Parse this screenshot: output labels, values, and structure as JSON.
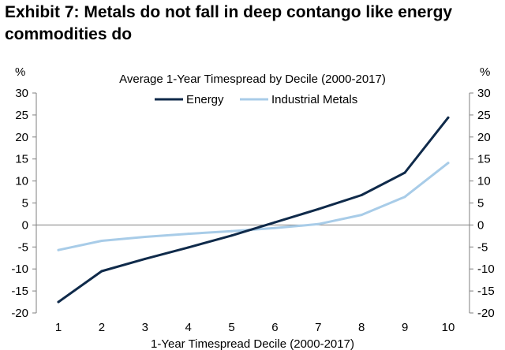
{
  "exhibit": {
    "title_line1": "Exhibit 7: Metals do not fall in deep contango like energy",
    "title_line2": "commodities do"
  },
  "chart_data": {
    "type": "line",
    "title": "Average 1-Year Timespread by Decile (2000-2017)",
    "xlabel": "1-Year Timespread Decile (2000-2017)",
    "ylabel_left": "%",
    "ylabel_right": "%",
    "x": [
      1,
      2,
      3,
      4,
      5,
      6,
      7,
      8,
      9,
      10
    ],
    "x_tick_labels": [
      "1",
      "2",
      "3",
      "4",
      "5",
      "6",
      "7",
      "8",
      "9",
      "10"
    ],
    "y_tick_labels": [
      "30",
      "25",
      "20",
      "15",
      "10",
      "5",
      "0",
      "-5",
      "-10",
      "-15",
      "-20"
    ],
    "ylim": [
      -20,
      30
    ],
    "grid": false,
    "legend_position": "top-center",
    "series": [
      {
        "name": "Energy",
        "color": "#0f2a4a",
        "values": [
          -17.5,
          -10.5,
          -7.7,
          -5.1,
          -2.4,
          0.6,
          3.6,
          6.8,
          11.9,
          24.4
        ]
      },
      {
        "name": "Industrial Metals",
        "color": "#a8cce8",
        "values": [
          -5.7,
          -3.6,
          -2.7,
          -2.0,
          -1.4,
          -0.7,
          0.2,
          2.3,
          6.4,
          14.1
        ]
      }
    ]
  }
}
